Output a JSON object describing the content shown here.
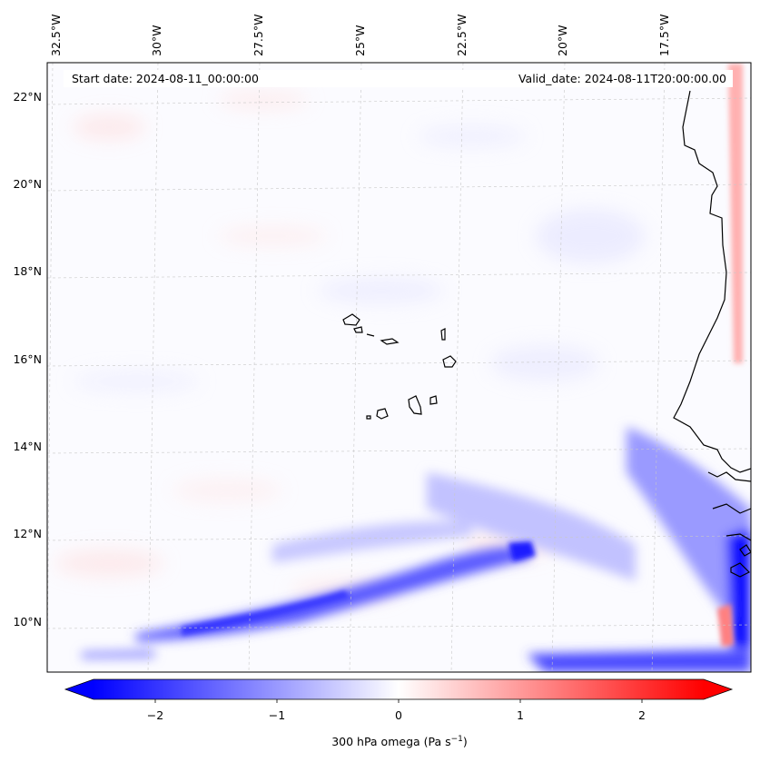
{
  "header": {
    "start_date": "Start date: 2024-08-11_00:00:00",
    "valid_date": "Valid_date: 2024-08-11T20:00:00.00"
  },
  "map": {
    "lon_labels": [
      "32.5°W",
      "30°W",
      "27.5°W",
      "25°W",
      "22.5°W",
      "20°W",
      "17.5°W"
    ],
    "lat_labels": [
      "22°N",
      "20°N",
      "18°N",
      "16°N",
      "14°N",
      "12°N",
      "10°N"
    ],
    "field_colors": {
      "negative": "#0000ff",
      "neutral": "#ffffff",
      "positive": "#ff0000"
    }
  },
  "colorbar": {
    "ticks": [
      "−2",
      "−1",
      "0",
      "1",
      "2"
    ],
    "label": "300 hPa omega (Pa s",
    "label_sup": "−1",
    "label_end": ")"
  }
}
